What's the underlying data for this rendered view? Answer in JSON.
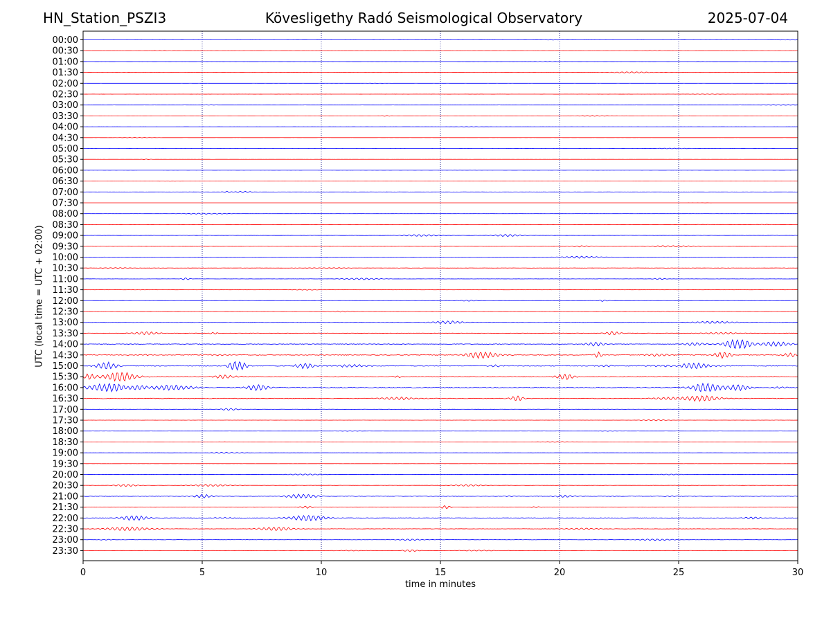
{
  "header": {
    "station": "HN_Station_PSZI3",
    "observatory": "Kövesligethy Radó Seismological Observatory",
    "date": "2025-07-04"
  },
  "chart_data": {
    "type": "line",
    "title": "Kövesligethy Radó Seismological Observatory",
    "xlabel": "time in minutes",
    "ylabel": "UTC (local time = UTC + 02:00)",
    "xlim": [
      0,
      30
    ],
    "x_ticks": [
      0,
      5,
      10,
      15,
      20,
      25,
      30
    ],
    "grid": "vertical dotted lines every 5 minutes",
    "row_labels": [
      "00:00",
      "00:30",
      "01:00",
      "01:30",
      "02:00",
      "02:30",
      "03:00",
      "03:30",
      "04:00",
      "04:30",
      "05:00",
      "05:30",
      "06:00",
      "06:30",
      "07:00",
      "07:30",
      "08:00",
      "08:30",
      "09:00",
      "09:30",
      "10:00",
      "10:30",
      "11:00",
      "11:30",
      "12:00",
      "12:30",
      "13:00",
      "13:30",
      "14:00",
      "14:30",
      "15:00",
      "15:30",
      "16:00",
      "16:30",
      "17:00",
      "17:30",
      "18:00",
      "18:30",
      "19:00",
      "19:30",
      "20:00",
      "20:30",
      "21:00",
      "21:30",
      "22:00",
      "22:30",
      "23:00",
      "23:30"
    ],
    "trace_colors": [
      "#0000ff",
      "#ff0000"
    ],
    "trace_activity": [
      0.04,
      0.05,
      0.04,
      0.08,
      0.03,
      0.05,
      0.04,
      0.06,
      0.03,
      0.03,
      0.04,
      0.03,
      0.03,
      0.04,
      0.08,
      0.03,
      0.07,
      0.04,
      0.12,
      0.12,
      0.12,
      0.14,
      0.12,
      0.1,
      0.08,
      0.06,
      0.2,
      0.22,
      0.35,
      0.45,
      0.55,
      0.45,
      0.5,
      0.35,
      0.12,
      0.1,
      0.05,
      0.05,
      0.07,
      0.04,
      0.06,
      0.12,
      0.3,
      0.2,
      0.28,
      0.2,
      0.15,
      0.15
    ]
  }
}
